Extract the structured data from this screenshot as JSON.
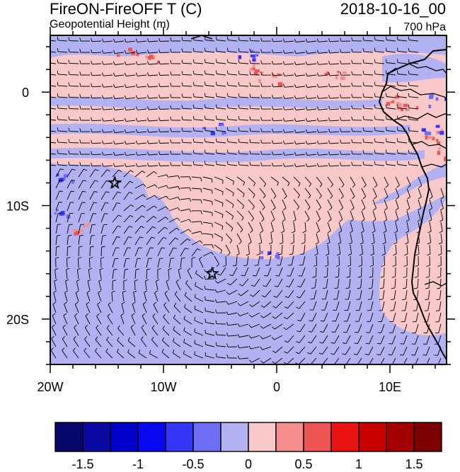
{
  "title": {
    "left": "FireON-FireOFF T (C)",
    "right": "2018-10-16_00"
  },
  "subtitle": {
    "left": "Geopotential Height (m)",
    "right": "700 hPa"
  },
  "axes": {
    "x_labels": [
      "20W",
      "10W",
      "0",
      "10E"
    ],
    "x_values": [
      -20,
      -10,
      0,
      10
    ],
    "y_labels": [
      "0",
      "10S",
      "20S"
    ],
    "y_values": [
      0,
      -10,
      -20
    ],
    "lon_range": [
      -20,
      15
    ],
    "lat_range": [
      -24,
      5
    ]
  },
  "colorbar": {
    "labels": [
      "-1.5",
      "-1",
      "-0.5",
      "0",
      "0.5",
      "1",
      "1.5"
    ],
    "label_values": [
      -1.5,
      -1,
      -0.5,
      0,
      0.5,
      1,
      1.5
    ],
    "colors": [
      "#06066b",
      "#0a0aa3",
      "#0000c8",
      "#0808f0",
      "#3535f8",
      "#6e6ef5",
      "#b2b2f2",
      "#f9c8c8",
      "#f58f8f",
      "#ef5454",
      "#ea1414",
      "#c80000",
      "#a40000",
      "#7d0000"
    ]
  },
  "markers": [
    {
      "type": "star",
      "lon": -14.3,
      "lat": -8.0
    },
    {
      "type": "star",
      "lon": -5.7,
      "lat": -16.0
    }
  ],
  "field": {
    "background_color": "#f9c8c8",
    "negative_color": "#b2b2f2"
  }
}
